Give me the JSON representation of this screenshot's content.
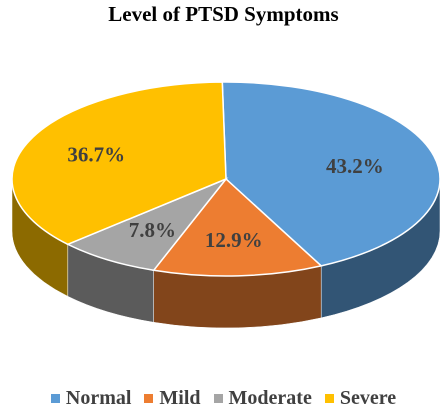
{
  "chart_data": {
    "type": "pie",
    "title": "Level of PTSD Symptoms",
    "categories": [
      "Normal",
      "Mild",
      "Moderate",
      "Severe"
    ],
    "values": [
      43.2,
      12.9,
      7.8,
      36.7
    ],
    "labels": [
      "43.2%",
      "12.9%",
      "7.8%",
      "36.7%"
    ],
    "colors": [
      "#5B9BD5",
      "#ED7D31",
      "#A5A5A5",
      "#FFC000"
    ],
    "legend_position": "bottom",
    "style": "3d"
  }
}
